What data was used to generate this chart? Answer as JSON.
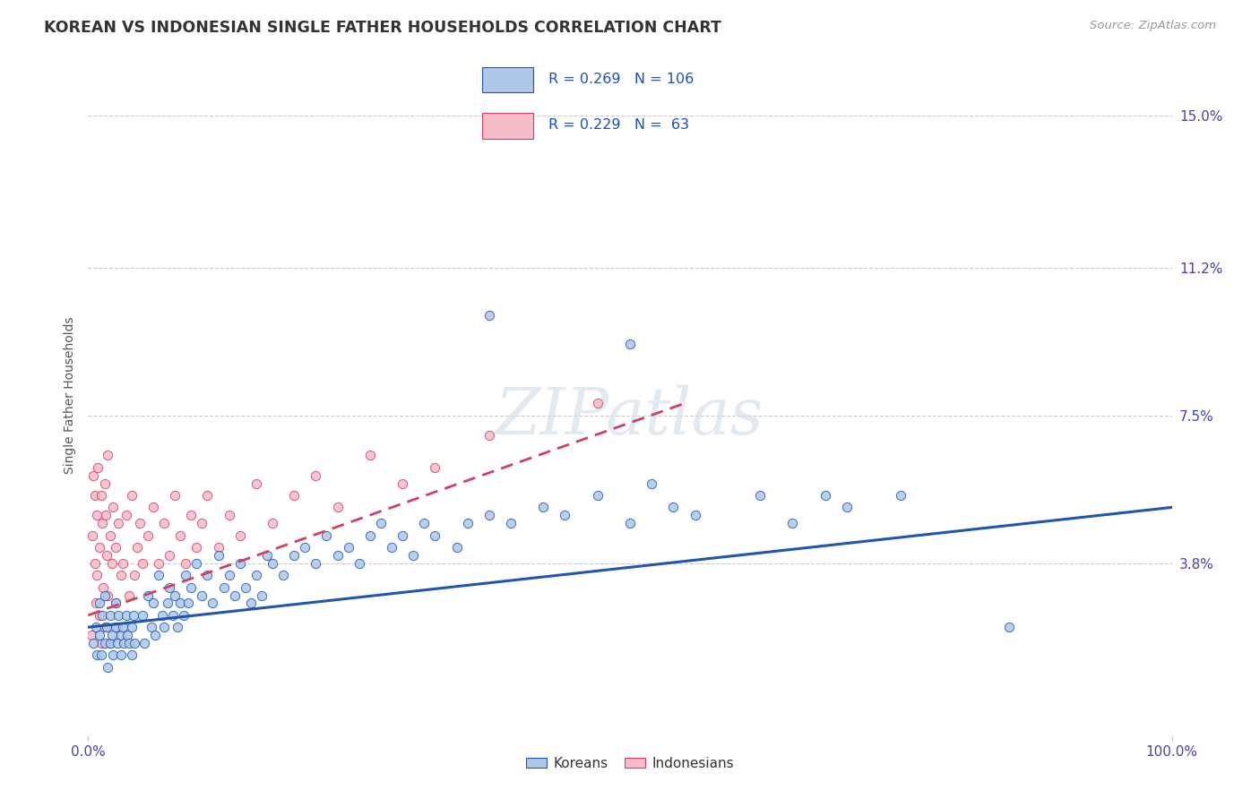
{
  "title": "KOREAN VS INDONESIAN SINGLE FATHER HOUSEHOLDS CORRELATION CHART",
  "source": "Source: ZipAtlas.com",
  "ylabel": "Single Father Households",
  "xlim": [
    0.0,
    1.0
  ],
  "ylim": [
    -0.005,
    0.165
  ],
  "xtick_labels": [
    "0.0%",
    "100.0%"
  ],
  "xtick_positions": [
    0.0,
    1.0
  ],
  "ytick_labels": [
    "3.8%",
    "7.5%",
    "11.2%",
    "15.0%"
  ],
  "ytick_values": [
    0.038,
    0.075,
    0.112,
    0.15
  ],
  "korean_color": "#adc8e8",
  "indonesian_color": "#f5bcc8",
  "korean_line_color": "#2255b0",
  "indonesian_line_color": "#d04060",
  "korean_R": 0.269,
  "korean_N": 106,
  "indonesian_R": 0.229,
  "indonesian_N": 63,
  "background_color": "#ffffff",
  "grid_color": "#cccccc",
  "legend_labels": [
    "Koreans",
    "Indonesians"
  ],
  "korean_trend_start_x": 0.0,
  "korean_trend_end_x": 1.0,
  "korean_trend_start_y": 0.022,
  "korean_trend_end_y": 0.052,
  "indonesian_trend_start_x": 0.0,
  "indonesian_trend_end_x": 0.55,
  "indonesian_trend_start_y": 0.025,
  "indonesian_trend_end_y": 0.078
}
